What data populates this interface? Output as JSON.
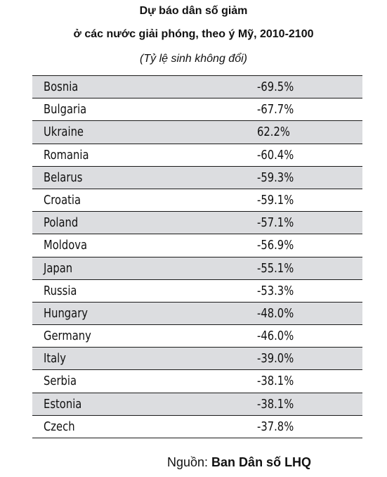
{
  "title": {
    "line1": "Dự báo dân số giảm",
    "line2": "ở các nước giải phóng, theo ý Mỹ, 2010-2100",
    "subtitle": "(Tỷ lệ sinh không đổi)"
  },
  "table": {
    "rows": [
      {
        "country": "Bosnia",
        "value": "-69.5%"
      },
      {
        "country": "Bulgaria",
        "value": "-67.7%"
      },
      {
        "country": "Ukraine",
        "value": "62.2%"
      },
      {
        "country": "Romania",
        "value": "-60.4%"
      },
      {
        "country": "Belarus",
        "value": "-59.3%"
      },
      {
        "country": "Croatia",
        "value": "-59.1%"
      },
      {
        "country": "Poland",
        "value": "-57.1%"
      },
      {
        "country": "Moldova",
        "value": "-56.9%"
      },
      {
        "country": "Japan",
        "value": "-55.1%"
      },
      {
        "country": "Russia",
        "value": "-53.3%"
      },
      {
        "country": "Hungary",
        "value": "-48.0%"
      },
      {
        "country": "Germany",
        "value": "-46.0%"
      },
      {
        "country": "Italy",
        "value": "-39.0%"
      },
      {
        "country": "Serbia",
        "value": "-38.1%"
      },
      {
        "country": "Estonia",
        "value": "-38.1%"
      },
      {
        "country": "Czech",
        "value": "-37.8%"
      }
    ]
  },
  "source": {
    "label": "Nguồn: ",
    "name": "Ban Dân số LHQ"
  },
  "colors": {
    "shaded_row": "#dcdde0",
    "plain_row": "#ffffff",
    "rule": "#1a1a1a"
  }
}
